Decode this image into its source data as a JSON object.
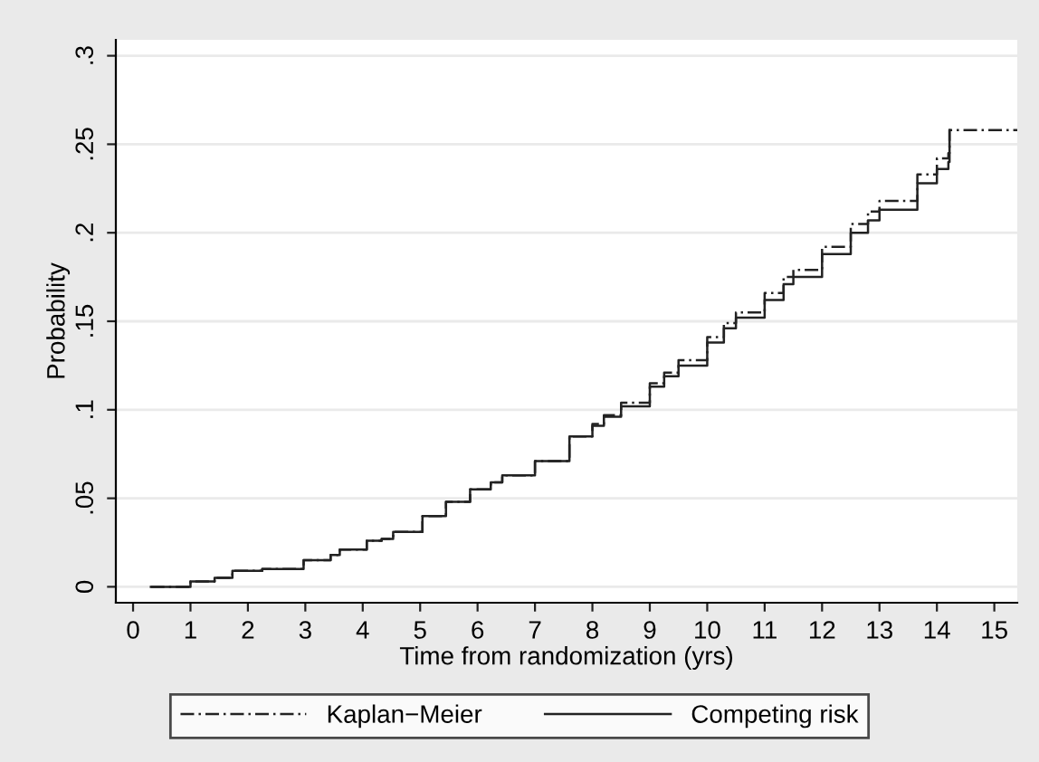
{
  "chart_data": {
    "type": "step",
    "xlabel": "Time from randomization (yrs)",
    "ylabel": "Probability",
    "xlim": [
      -0.3,
      15.4
    ],
    "ylim": [
      -0.009,
      0.309
    ],
    "xticks": [
      0,
      1,
      2,
      3,
      4,
      5,
      6,
      7,
      8,
      9,
      10,
      11,
      12,
      13,
      14,
      15
    ],
    "yticks": [
      {
        "value": 0,
        "label": "0"
      },
      {
        "value": 0.05,
        "label": ".05"
      },
      {
        "value": 0.1,
        "label": ".1"
      },
      {
        "value": 0.15,
        "label": ".15"
      },
      {
        "value": 0.2,
        "label": ".2"
      },
      {
        "value": 0.25,
        "label": ".25"
      },
      {
        "value": 0.3,
        "label": ".3"
      }
    ],
    "grid": "y",
    "legend": "bottom",
    "series": [
      {
        "name": "Kaplan−Meier",
        "color": "#222222",
        "line_style": "dashed",
        "x": [
          0.31,
          1.0,
          1.42,
          1.73,
          2.25,
          2.97,
          3.44,
          3.6,
          4.07,
          4.33,
          4.53,
          5.04,
          5.45,
          5.87,
          6.23,
          6.43,
          7.0,
          7.6,
          8.0,
          8.2,
          8.5,
          9.0,
          9.25,
          9.5,
          10.0,
          10.29,
          10.5,
          11.0,
          11.33,
          11.5,
          12.0,
          12.5,
          12.8,
          13.0,
          13.66,
          14.0,
          14.2,
          14.22,
          15.4
        ],
        "values": [
          0.0,
          0.003,
          0.005,
          0.009,
          0.01,
          0.015,
          0.018,
          0.021,
          0.026,
          0.027,
          0.031,
          0.04,
          0.048,
          0.055,
          0.059,
          0.063,
          0.071,
          0.085,
          0.092,
          0.097,
          0.104,
          0.115,
          0.121,
          0.128,
          0.141,
          0.149,
          0.155,
          0.166,
          0.175,
          0.179,
          0.192,
          0.205,
          0.212,
          0.218,
          0.233,
          0.242,
          0.245,
          0.258,
          0.258
        ]
      },
      {
        "name": "Competing risk",
        "color": "#222222",
        "line_style": "solid",
        "x": [
          0.31,
          1.0,
          1.42,
          1.73,
          2.25,
          2.97,
          3.44,
          3.6,
          4.07,
          4.33,
          4.53,
          5.04,
          5.45,
          5.87,
          6.23,
          6.43,
          7.0,
          7.6,
          8.0,
          8.2,
          8.5,
          9.0,
          9.25,
          9.5,
          10.0,
          10.29,
          10.5,
          11.0,
          11.33,
          11.5,
          12.0,
          12.5,
          12.8,
          13.0,
          13.66,
          14.0,
          14.2,
          14.22
        ],
        "values": [
          0.0,
          0.003,
          0.005,
          0.009,
          0.01,
          0.015,
          0.018,
          0.021,
          0.026,
          0.027,
          0.031,
          0.04,
          0.048,
          0.055,
          0.059,
          0.063,
          0.071,
          0.085,
          0.091,
          0.096,
          0.102,
          0.113,
          0.119,
          0.125,
          0.138,
          0.146,
          0.152,
          0.162,
          0.171,
          0.175,
          0.188,
          0.2,
          0.207,
          0.213,
          0.228,
          0.236,
          0.24,
          0.258
        ]
      }
    ]
  }
}
